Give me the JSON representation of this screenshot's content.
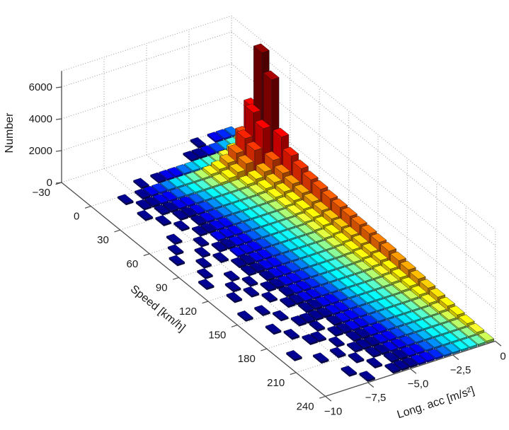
{
  "colors": {
    "background": "#ffffff",
    "grid": "#9a9a9a",
    "axis_line": "#4d4d4d",
    "text": "#1a1a1a",
    "colormap_low": "#00008f",
    "colormap_high": "#7f0000"
  },
  "axes": {
    "z": {
      "label": "Number",
      "tick_labels": [
        "0",
        "2000",
        "4000",
        "6000"
      ],
      "tick_values": [
        0,
        2000,
        4000,
        6000
      ],
      "max": 7000
    },
    "speed": {
      "label": "Speed [km/h]",
      "tick_labels": [
        "−30",
        "0",
        "30",
        "60",
        "90",
        "120",
        "150",
        "180",
        "210",
        "240"
      ],
      "tick_values": [
        -30,
        0,
        30,
        60,
        90,
        120,
        150,
        180,
        210,
        240
      ],
      "min": -30,
      "max": 240
    },
    "acc": {
      "label": "Long. acc [m/s²]",
      "tick_labels": [
        "−10",
        "−7,5",
        "−5,0",
        "−2,5",
        "0"
      ],
      "tick_values": [
        -10,
        -7.5,
        -5,
        -2.5,
        0
      ],
      "min": -10,
      "max": 0
    }
  },
  "chart_data": {
    "type": "bar",
    "subtype": "3d-histogram",
    "title": "",
    "xlabel": "Speed [km/h]",
    "ylabel": "Long. acc [m/s²]",
    "zlabel": "Number",
    "zlim": [
      0,
      7000
    ],
    "grid": true,
    "colormap": "jet, log-scaled by bin count (dark blue = 1, dark red = max)",
    "speed_bins": {
      "start": -30,
      "step": 10,
      "count": 27
    },
    "acc_bins": {
      "start": -10,
      "step": 0.5,
      "count": 20
    },
    "counts_note": "rows = speed bins ascending (-30..240); columns = acc bins ascending (-10..0)",
    "counts": [
      [
        0,
        0,
        0,
        0,
        0,
        0,
        0,
        0,
        0,
        0,
        0,
        0,
        0,
        0,
        0,
        1,
        0,
        2,
        4,
        7
      ],
      [
        0,
        0,
        0,
        0,
        0,
        0,
        0,
        0,
        0,
        0,
        0,
        0,
        0,
        1,
        1,
        2,
        5,
        12,
        45,
        160
      ],
      [
        0,
        0,
        0,
        0,
        0,
        0,
        1,
        0,
        1,
        2,
        3,
        7,
        13,
        25,
        48,
        90,
        180,
        420,
        1300,
        2900
      ],
      [
        0,
        0,
        0,
        1,
        0,
        1,
        2,
        4,
        8,
        16,
        33,
        60,
        110,
        200,
        340,
        560,
        1000,
        1750,
        3200,
        6800
      ],
      [
        0,
        0,
        0,
        0,
        1,
        1,
        2,
        3,
        6,
        12,
        26,
        48,
        88,
        160,
        280,
        470,
        830,
        1500,
        2700,
        5600
      ],
      [
        0,
        0,
        0,
        1,
        0,
        1,
        1,
        2,
        3,
        6,
        12,
        22,
        41,
        72,
        125,
        210,
        370,
        650,
        1200,
        2500
      ],
      [
        0,
        0,
        0,
        0,
        1,
        0,
        1,
        1,
        2,
        5,
        9,
        16,
        31,
        54,
        92,
        155,
        275,
        480,
        880,
        1800
      ],
      [
        0,
        0,
        0,
        0,
        0,
        1,
        0,
        1,
        2,
        4,
        8,
        13,
        26,
        45,
        76,
        130,
        225,
        395,
        720,
        1500
      ],
      [
        0,
        0,
        0,
        1,
        0,
        0,
        1,
        1,
        2,
        3,
        7,
        11,
        22,
        39,
        65,
        110,
        195,
        345,
        630,
        1300
      ],
      [
        0,
        0,
        1,
        0,
        0,
        1,
        0,
        2,
        2,
        3,
        6,
        10,
        20,
        36,
        60,
        102,
        180,
        315,
        580,
        1200
      ],
      [
        0,
        1,
        0,
        0,
        1,
        0,
        1,
        1,
        2,
        3,
        6,
        10,
        19,
        33,
        56,
        95,
        168,
        295,
        540,
        1100
      ],
      [
        0,
        0,
        0,
        1,
        0,
        1,
        0,
        2,
        2,
        3,
        5,
        9,
        18,
        32,
        54,
        90,
        160,
        280,
        515,
        1050
      ],
      [
        0,
        0,
        1,
        0,
        0,
        0,
        1,
        1,
        2,
        3,
        5,
        9,
        17,
        30,
        51,
        86,
        152,
        265,
        490,
        1000
      ],
      [
        0,
        1,
        0,
        0,
        1,
        0,
        1,
        1,
        2,
        3,
        5,
        8,
        16,
        29,
        49,
        82,
        145,
        255,
        465,
        950
      ],
      [
        0,
        0,
        0,
        1,
        0,
        1,
        0,
        1,
        2,
        3,
        5,
        8,
        15,
        27,
        46,
        78,
        138,
        240,
        440,
        900
      ],
      [
        0,
        0,
        1,
        0,
        1,
        0,
        1,
        1,
        2,
        3,
        4,
        7,
        14,
        26,
        43,
        73,
        130,
        225,
        415,
        850
      ],
      [
        0,
        0,
        0,
        0,
        0,
        1,
        0,
        1,
        2,
        2,
        4,
        7,
        14,
        24,
        41,
        69,
        122,
        212,
        390,
        800
      ],
      [
        0,
        1,
        0,
        1,
        0,
        0,
        1,
        1,
        2,
        2,
        4,
        6,
        12,
        21,
        36,
        61,
        107,
        187,
        345,
        700
      ],
      [
        0,
        0,
        0,
        0,
        1,
        0,
        0,
        1,
        1,
        2,
        3,
        5,
        11,
        19,
        32,
        54,
        95,
        165,
        305,
        620
      ],
      [
        0,
        0,
        1,
        0,
        0,
        1,
        1,
        1,
        1,
        2,
        3,
        5,
        9,
        17,
        28,
        47,
        83,
        144,
        266,
        540
      ],
      [
        0,
        0,
        0,
        1,
        0,
        0,
        1,
        0,
        1,
        2,
        3,
        4,
        8,
        14,
        24,
        41,
        72,
        125,
        231,
        470
      ],
      [
        0,
        0,
        0,
        0,
        1,
        1,
        0,
        1,
        1,
        2,
        2,
        4,
        7,
        12,
        21,
        35,
        61,
        107,
        197,
        400
      ],
      [
        0,
        1,
        0,
        0,
        0,
        0,
        1,
        0,
        1,
        1,
        2,
        3,
        6,
        10,
        17,
        30,
        52,
        90,
        167,
        340
      ],
      [
        0,
        0,
        0,
        1,
        0,
        1,
        0,
        1,
        1,
        1,
        2,
        3,
        5,
        9,
        14,
        25,
        43,
        74,
        138,
        280
      ],
      [
        0,
        0,
        0,
        0,
        0,
        0,
        1,
        0,
        1,
        1,
        2,
        2,
        4,
        7,
        12,
        20,
        35,
        61,
        113,
        230
      ],
      [
        0,
        0,
        0,
        0,
        1,
        0,
        0,
        1,
        0,
        1,
        1,
        2,
        3,
        6,
        9,
        16,
        28,
        48,
        89,
        180
      ],
      [
        0,
        0,
        0,
        0,
        0,
        1,
        0,
        0,
        1,
        1,
        1,
        2,
        3,
        4,
        7,
        12,
        21,
        36,
        65,
        130
      ]
    ]
  }
}
